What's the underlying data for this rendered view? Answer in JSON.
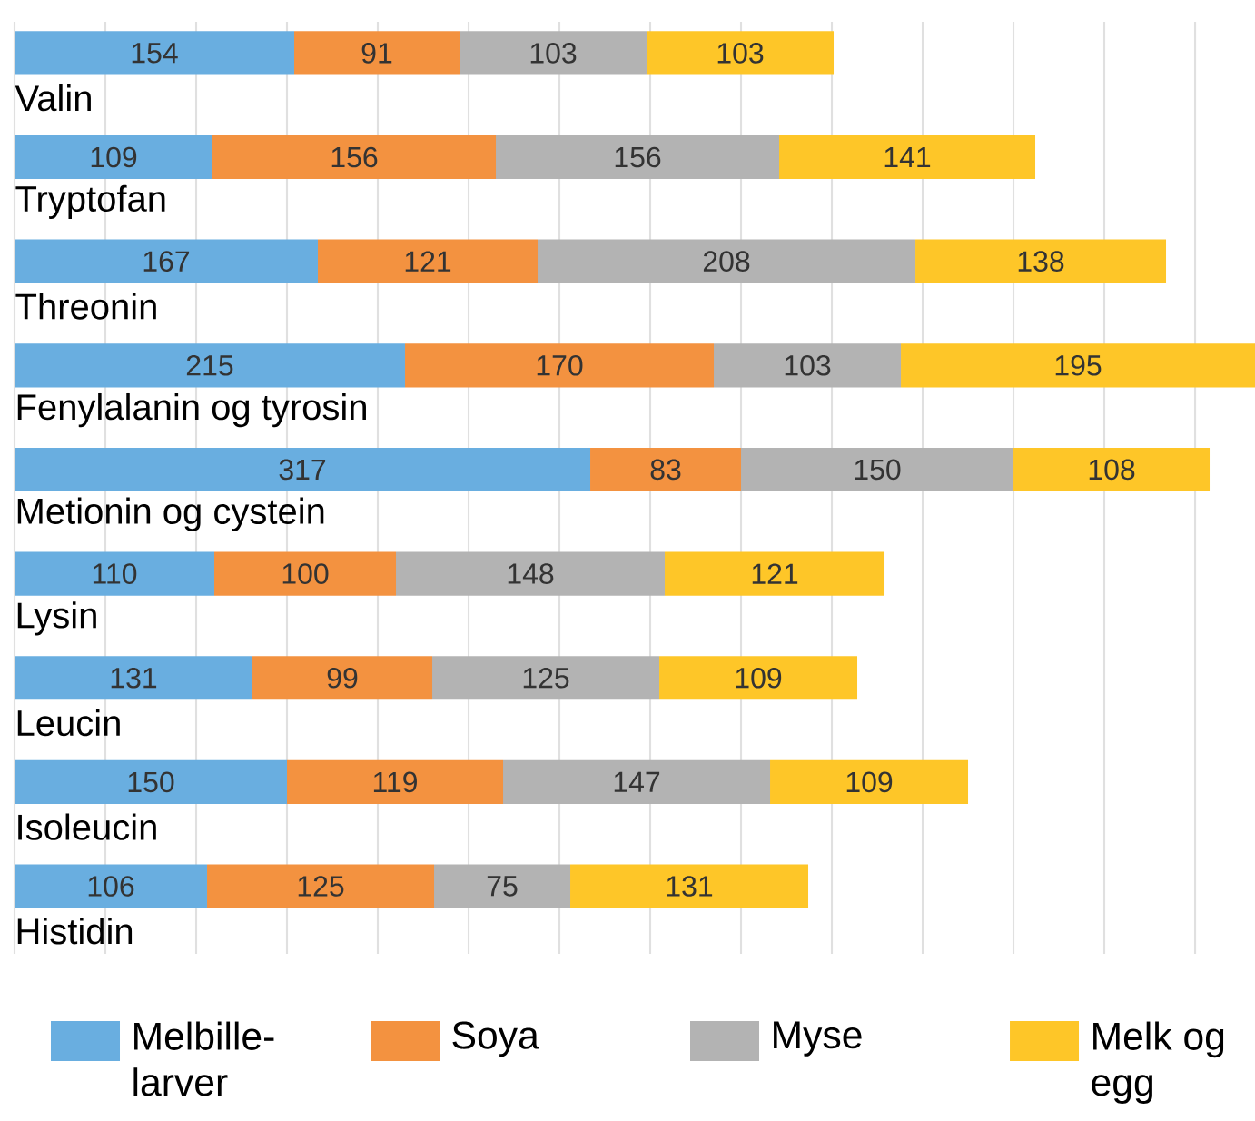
{
  "chart_data": {
    "type": "bar",
    "orientation": "horizontal",
    "stacked": true,
    "data_labels": true,
    "grid": "x",
    "tick_labels": false,
    "legend": "bottom",
    "categories": [
      "Valin",
      "Tryptofan",
      "Threonin",
      "Fenylalanin og tyrosin",
      "Metionin og cystein",
      "Lysin",
      "Leucin",
      "Isoleucin",
      "Histidin"
    ],
    "series": [
      {
        "name": "Melbille-larver",
        "color": "#69aee0",
        "values": [
          154,
          109,
          167,
          215,
          317,
          110,
          131,
          150,
          106
        ]
      },
      {
        "name": "Soya",
        "color": "#f39240",
        "values": [
          91,
          156,
          121,
          170,
          83,
          100,
          99,
          119,
          125
        ]
      },
      {
        "name": "Myse",
        "color": "#b3b3b3",
        "values": [
          103,
          156,
          208,
          103,
          150,
          148,
          125,
          147,
          75
        ]
      },
      {
        "name": "Melk og egg",
        "color": "#fec628",
        "values": [
          103,
          141,
          138,
          195,
          108,
          121,
          109,
          109,
          131
        ]
      }
    ]
  }
}
